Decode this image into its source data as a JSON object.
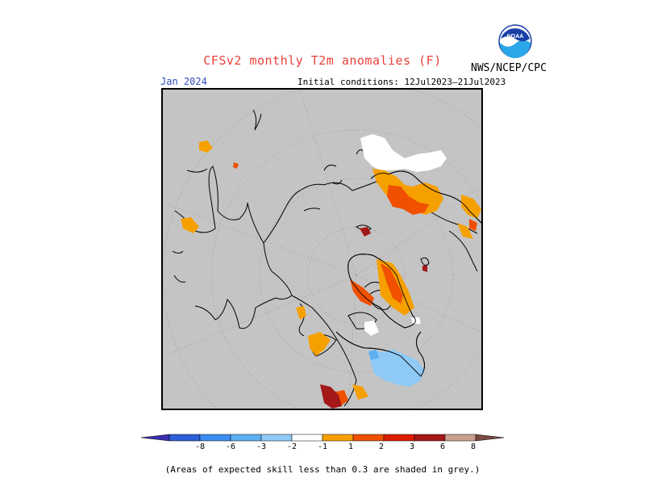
{
  "header": {
    "title": "CFSv2 monthly T2m anomalies (F)",
    "agency": "NWS/NCEP/CPC",
    "period": "Jan 2024",
    "initial_conditions": "Initial conditions: 12Jul2023–21Jul2023"
  },
  "logo": {
    "text": "NOAA"
  },
  "colorbar": {
    "tick_labels": [
      "-8",
      "-6",
      "-3",
      "-2",
      "-1",
      "1",
      "2",
      "3",
      "6",
      "8"
    ],
    "colors": [
      "#3b2fb0",
      "#2e5fd6",
      "#3c8ef0",
      "#5eb0f2",
      "#8fcaf7",
      "#ffffff",
      "#f6a000",
      "#f05000",
      "#dc1e00",
      "#a51818",
      "#c9a08f",
      "#7a4a42"
    ]
  },
  "footnote": "(Areas of expected skill less than 0.3 are shaded in grey.)",
  "legend_colors": {
    "grey_skill": "#c4c4c4",
    "warm_1_2": "#f6a000",
    "warm_2_3": "#f05000",
    "warm_3_6": "#a51818",
    "cool_m1_m2": "#8fcaf7",
    "land_outline": "#000000"
  }
}
